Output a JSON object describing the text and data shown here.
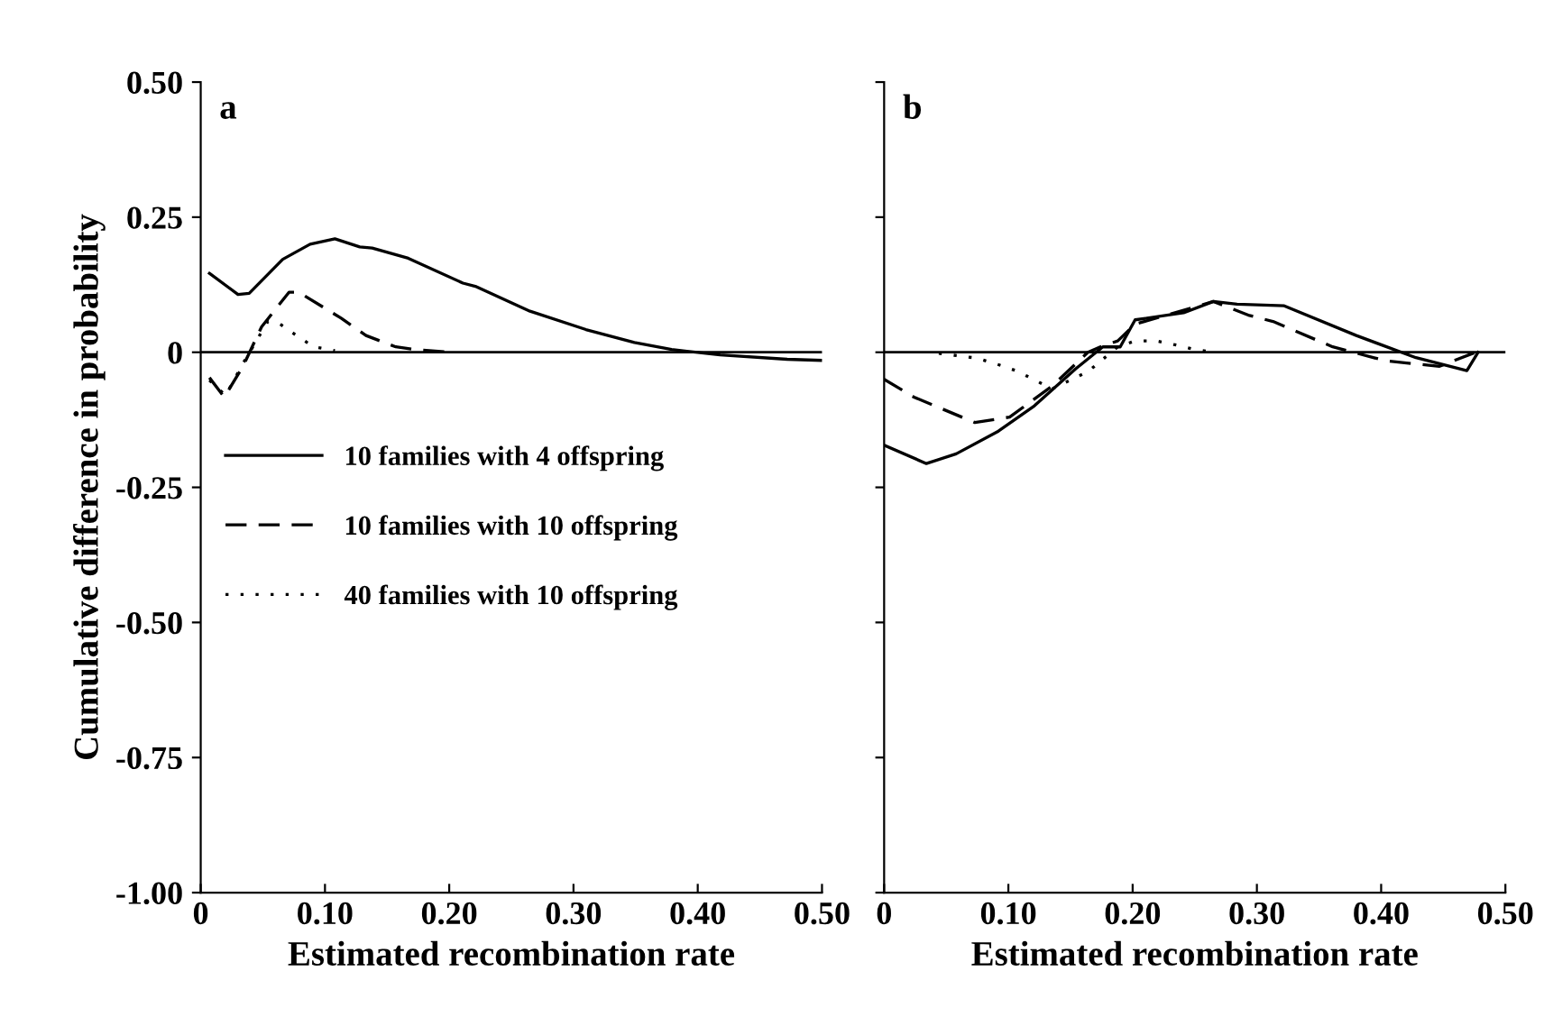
{
  "chart_data": [
    {
      "type": "line",
      "ylabel": "Cumulative difference in probability",
      "xlabel": "Estimated recombination rate",
      "annotations": [
        "a"
      ],
      "xlim": [
        0,
        0.5
      ],
      "ylim": [
        -1.0,
        0.5
      ],
      "xticks": [
        0,
        {
          "value": 0.1,
          "label": "0.10"
        },
        {
          "value": 0.2,
          "label": "0.20"
        },
        {
          "value": 0.3,
          "label": "0.30"
        },
        {
          "value": 0.4,
          "label": "0.40"
        },
        {
          "value": 0.5,
          "label": "0.50"
        }
      ],
      "yticks": [
        {
          "value": -1.0,
          "label": "-1.00"
        },
        {
          "value": -0.75,
          "label": "-0.75"
        },
        {
          "value": -0.5,
          "label": "-0.50"
        },
        {
          "value": -0.25,
          "label": "-0.25"
        },
        0,
        {
          "value": 0.25,
          "label": "0.25"
        },
        {
          "value": 0.5,
          "label": "0.50"
        }
      ],
      "ref_lines": [
        {
          "axis": "y",
          "value": 0,
          "color": "#000000"
        }
      ],
      "legend": "left",
      "grid": false,
      "series": [
        {
          "name": "10 families with 4 offspring",
          "color": "#000000",
          "line_style": "solid",
          "x": [
            0.007,
            0.03,
            0.039,
            0.066,
            0.088,
            0.108,
            0.128,
            0.138,
            0.167,
            0.211,
            0.221,
            0.265,
            0.31,
            0.349,
            0.379,
            0.418,
            0.472,
            0.5
          ],
          "values": [
            0.146,
            0.107,
            0.109,
            0.172,
            0.2,
            0.21,
            0.195,
            0.193,
            0.174,
            0.128,
            0.122,
            0.076,
            0.042,
            0.018,
            0.005,
            -0.005,
            -0.013,
            -0.015
          ]
        },
        {
          "name": "10 families with 10 offspring",
          "color": "#000000",
          "line_style": "dashed",
          "x": [
            0.007,
            0.019,
            0.034,
            0.049,
            0.071,
            0.079,
            0.113,
            0.133,
            0.157,
            0.172,
            0.2
          ],
          "values": [
            -0.047,
            -0.083,
            -0.026,
            0.047,
            0.111,
            0.111,
            0.063,
            0.031,
            0.01,
            0.005,
            0
          ]
        },
        {
          "name": "40 families with 10 offspring",
          "color": "#000000",
          "line_style": "dotted",
          "x": [
            0.007,
            0.02,
            0.034,
            0.054,
            0.064,
            0.079,
            0.091,
            0.108
          ],
          "values": [
            -0.052,
            -0.08,
            -0.021,
            0.057,
            0.052,
            0.028,
            0.01,
            0.003
          ]
        }
      ]
    },
    {
      "type": "line",
      "xlabel": "Estimated recombination rate",
      "annotations": [
        "b"
      ],
      "tick_labels": "x",
      "xlim": [
        0,
        0.5
      ],
      "ylim": [
        -1.0,
        0.5
      ],
      "xticks": [
        0,
        {
          "value": 0.1,
          "label": "0.10"
        },
        {
          "value": 0.2,
          "label": "0.20"
        },
        {
          "value": 0.3,
          "label": "0.30"
        },
        {
          "value": 0.4,
          "label": "0.40"
        },
        {
          "value": 0.5,
          "label": "0.50"
        }
      ],
      "yticks": [
        -1.0,
        -0.75,
        -0.5,
        -0.25,
        0,
        0.25,
        0.5
      ],
      "ref_lines": [
        {
          "axis": "y",
          "value": 0,
          "color": "#000000"
        }
      ],
      "grid": false,
      "series": [
        {
          "color": "#000000",
          "line_style": "solid",
          "x": [
            0.0,
            0.034,
            0.058,
            0.092,
            0.121,
            0.154,
            0.176,
            0.19,
            0.202,
            0.241,
            0.265,
            0.284,
            0.322,
            0.38,
            0.428,
            0.469,
            0.478
          ],
          "values": [
            -0.172,
            -0.206,
            -0.188,
            -0.146,
            -0.099,
            -0.031,
            0.01,
            0.01,
            0.06,
            0.073,
            0.094,
            0.089,
            0.086,
            0.031,
            -0.01,
            -0.034,
            0
          ]
        },
        {
          "color": "#000000",
          "line_style": "dashed",
          "x": [
            0.0,
            0.024,
            0.073,
            0.101,
            0.135,
            0.164,
            0.174,
            0.188,
            0.202,
            0.231,
            0.265,
            0.294,
            0.313,
            0.361,
            0.404,
            0.447,
            0.476
          ],
          "values": [
            -0.05,
            -0.083,
            -0.13,
            -0.12,
            -0.063,
            0,
            0.01,
            0.021,
            0.052,
            0.071,
            0.094,
            0.068,
            0.057,
            0.01,
            -0.016,
            -0.026,
            0
          ]
        },
        {
          "color": "#000000",
          "line_style": "dotted",
          "x": [
            0.044,
            0.075,
            0.092,
            0.106,
            0.122,
            0.135,
            0.164,
            0.176,
            0.188,
            0.202,
            0.219,
            0.236,
            0.25,
            0.265
          ],
          "values": [
            -0.002,
            -0.011,
            -0.023,
            -0.034,
            -0.052,
            -0.068,
            -0.036,
            -0.013,
            0.01,
            0.021,
            0.021,
            0.013,
            0.005,
            0
          ]
        }
      ]
    }
  ]
}
